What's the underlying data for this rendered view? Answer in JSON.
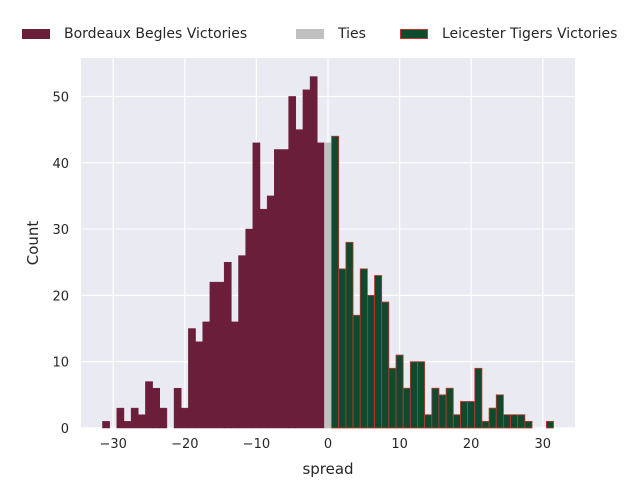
{
  "chart_data": {
    "type": "bar",
    "title": "",
    "xlabel": "spread",
    "ylabel": "Count",
    "xlim": [
      -34.5,
      34.5
    ],
    "ylim": [
      0,
      55.8
    ],
    "xticks": [
      -30,
      -20,
      -10,
      0,
      10,
      20,
      30
    ],
    "yticks": [
      0,
      10,
      20,
      30,
      40,
      50
    ],
    "grid": true,
    "legend_position": "top",
    "series": [
      {
        "name": "Bordeaux Begles Victories",
        "color": "#6b1e3a",
        "edge": "#6b1e3a",
        "x": [
          -31,
          -30,
          -29,
          -28,
          -27,
          -26,
          -25,
          -24,
          -23,
          -22,
          -21,
          -20,
          -19,
          -18,
          -17,
          -16,
          -15,
          -14,
          -13,
          -12,
          -11,
          -10,
          -9,
          -8,
          -7,
          -6,
          -5,
          -4,
          -3,
          -2,
          -1
        ],
        "values": [
          1,
          0,
          3,
          1,
          3,
          2,
          7,
          6,
          3,
          0,
          6,
          3,
          15,
          13,
          16,
          22,
          22,
          25,
          16,
          26,
          30,
          43,
          33,
          35,
          42,
          42,
          50,
          45,
          51,
          53,
          43
        ]
      },
      {
        "name": "Ties",
        "color": "#c0c0c0",
        "edge": "#c0c0c0",
        "x": [
          0
        ],
        "values": [
          43
        ]
      },
      {
        "name": "Leicester Tigers Victories",
        "color": "#0f4a2e",
        "edge": "#c0392b",
        "x": [
          1,
          2,
          3,
          4,
          5,
          6,
          7,
          8,
          9,
          10,
          11,
          12,
          13,
          14,
          15,
          16,
          17,
          18,
          19,
          20,
          21,
          22,
          23,
          24,
          25,
          26,
          27,
          28,
          29,
          30,
          31
        ],
        "values": [
          44,
          24,
          28,
          17,
          24,
          20,
          23,
          19,
          9,
          11,
          6,
          10,
          10,
          2,
          6,
          5,
          6,
          2,
          4,
          4,
          9,
          1,
          3,
          5,
          2,
          2,
          2,
          1,
          0,
          0,
          1
        ]
      }
    ]
  }
}
